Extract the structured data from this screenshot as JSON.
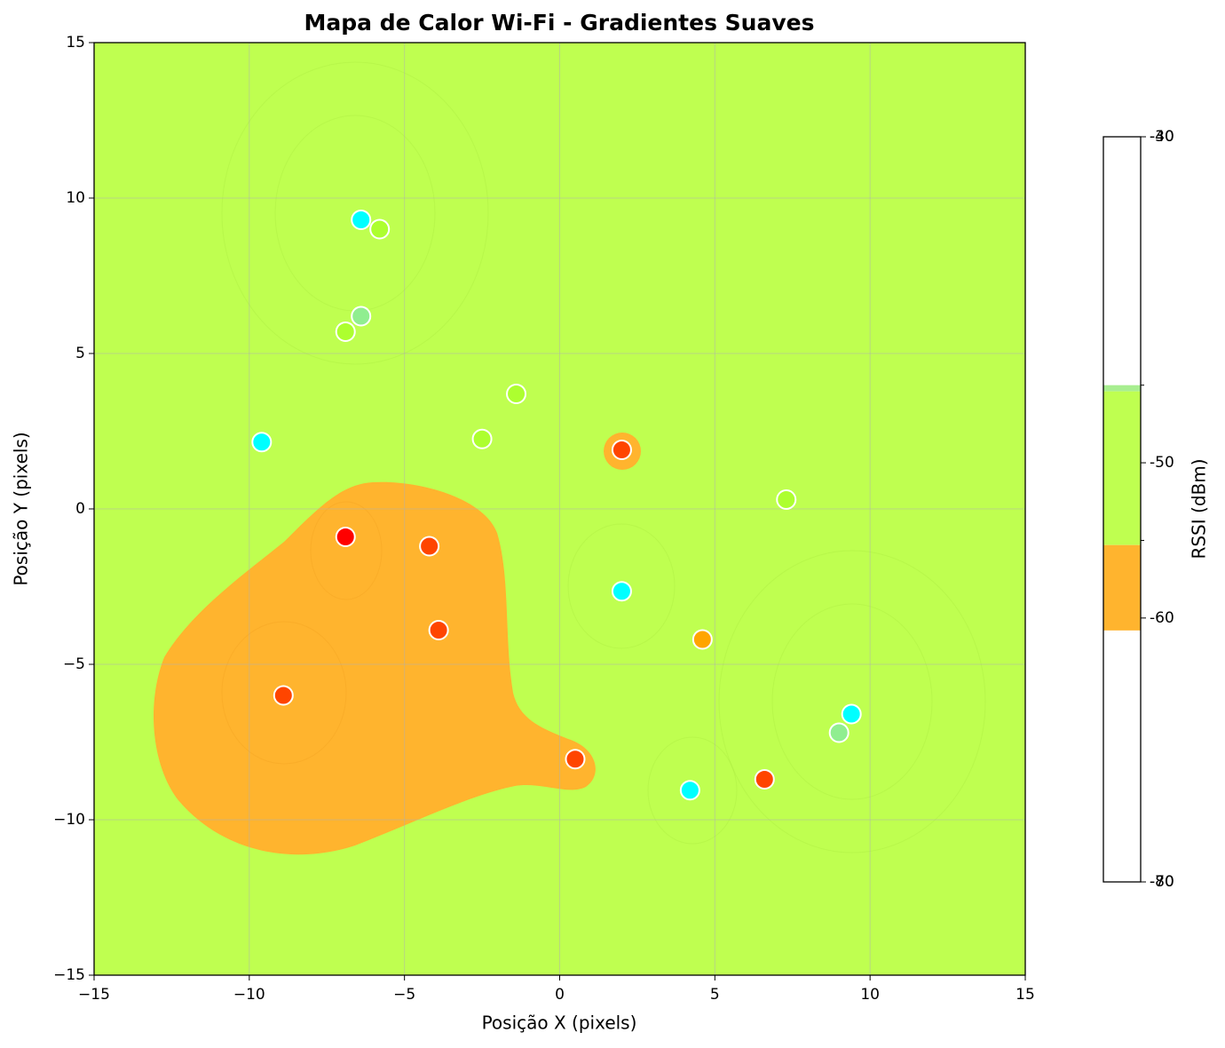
{
  "chart_data": {
    "type": "scatter",
    "title": "Mapa de Calor Wi-Fi - Gradientes Suaves",
    "x_label": "Posição X (pixels)",
    "y_label": "Posição Y (pixels)",
    "xlim": [
      -15,
      15
    ],
    "ylim": [
      -15,
      15
    ],
    "xticks": [
      {
        "value": -15,
        "label": "−15"
      },
      {
        "value": -10,
        "label": "−10"
      },
      {
        "value": -5,
        "label": "−5"
      },
      0,
      5,
      10,
      15
    ],
    "yticks": [
      {
        "value": -15,
        "label": "−15"
      },
      {
        "value": -10,
        "label": "−10"
      },
      {
        "value": -5,
        "label": "−5"
      },
      0,
      5,
      10,
      15
    ],
    "grid": true,
    "background_color": "#bfff50",
    "region_color": "#ffb42e",
    "x": [
      -6.4,
      -5.8,
      -6.4,
      -6.9,
      -1.4,
      -2.5,
      -9.6,
      2.0,
      7.3,
      -6.9,
      -4.2,
      2.0,
      -3.9,
      4.6,
      -8.9,
      9.4,
      9.0,
      0.5,
      4.2,
      6.6
    ],
    "y": [
      9.3,
      9.0,
      6.2,
      5.7,
      3.7,
      2.25,
      2.15,
      1.9,
      0.3,
      -0.9,
      -1.2,
      -2.65,
      -3.9,
      -4.2,
      -6.0,
      -6.6,
      -7.2,
      -8.05,
      -9.05,
      -8.7
    ],
    "point_colors": [
      "#00ffff",
      "#adff2f",
      "#90ee90",
      "#adff2f",
      "#adff2f",
      "#adff2f",
      "#00ffff",
      "#ff4500",
      "#adff2f",
      "#ff0000",
      "#ff4500",
      "#00ffff",
      "#ff4500",
      "#ffa500",
      "#ff4500",
      "#00ffff",
      "#90ee90",
      "#ff4500",
      "#00ffff",
      "#ff4500"
    ],
    "colorbar": {
      "label": "RSSI (dBm)",
      "lim": [
        -77,
        -29
      ],
      "ticks": [
        -50,
        -60
      ],
      "minor_ticks": [
        -45,
        -55
      ],
      "top_labels": [
        "-30",
        "-40"
      ],
      "bottom_labels": [
        "-70",
        "-80"
      ],
      "bands": [
        {
          "from": -45,
          "to": -45.4,
          "color": "#a8ee90"
        },
        {
          "from": -45.4,
          "to": -55.3,
          "color": "#bfff50"
        },
        {
          "from": -55.3,
          "to": -60.8,
          "color": "#ffb42e"
        }
      ]
    }
  }
}
